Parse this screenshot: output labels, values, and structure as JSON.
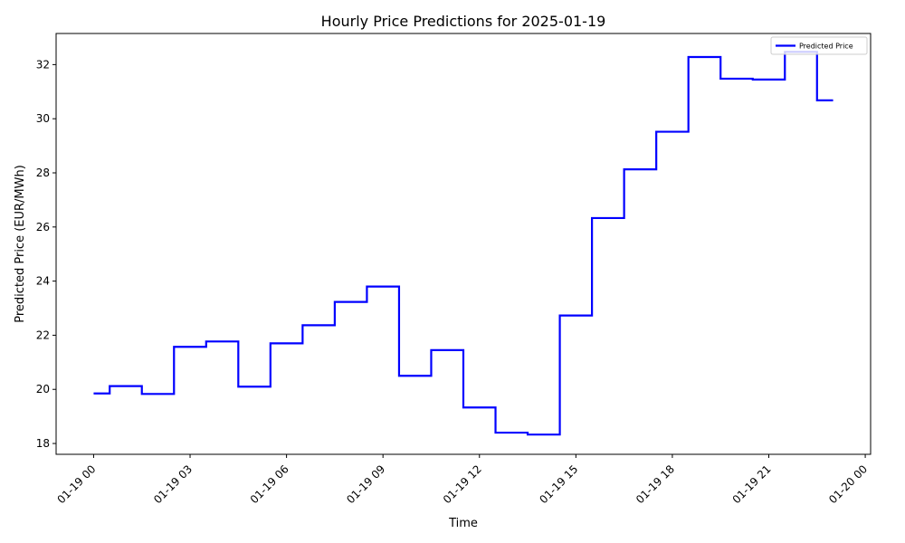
{
  "chart_data": {
    "type": "line",
    "title": "Hourly Price Predictions for 2025-01-19",
    "xlabel": "Time",
    "ylabel": "Predicted Price (EUR/MWh)",
    "x": [
      "2025-01-19 00:00",
      "2025-01-19 01:00",
      "2025-01-19 02:00",
      "2025-01-19 03:00",
      "2025-01-19 04:00",
      "2025-01-19 05:00",
      "2025-01-19 06:00",
      "2025-01-19 07:00",
      "2025-01-19 08:00",
      "2025-01-19 09:00",
      "2025-01-19 10:00",
      "2025-01-19 11:00",
      "2025-01-19 12:00",
      "2025-01-19 13:00",
      "2025-01-19 14:00",
      "2025-01-19 15:00",
      "2025-01-19 16:00",
      "2025-01-19 17:00",
      "2025-01-19 18:00",
      "2025-01-19 19:00",
      "2025-01-19 20:00",
      "2025-01-19 21:00",
      "2025-01-19 22:00",
      "2025-01-19 23:00"
    ],
    "series": [
      {
        "name": "Predicted Price",
        "color": "#0000ff",
        "step": "mid",
        "values": [
          19.85,
          20.12,
          19.83,
          21.57,
          21.77,
          20.1,
          21.7,
          22.37,
          23.23,
          23.8,
          20.5,
          21.45,
          19.33,
          18.4,
          18.33,
          22.73,
          26.33,
          28.13,
          29.52,
          32.28,
          31.48,
          31.45,
          32.47,
          30.68
        ]
      }
    ],
    "xlim": [
      "2025-01-18 22:50",
      "2025-01-20 00:10"
    ],
    "ylim": [
      17.6,
      33.15
    ],
    "xticks": [
      "01-19 00",
      "01-19 03",
      "01-19 06",
      "01-19 09",
      "01-19 12",
      "01-19 15",
      "01-19 18",
      "01-19 21",
      "01-20 00"
    ],
    "yticks": [
      18,
      20,
      22,
      24,
      26,
      28,
      30,
      32
    ],
    "legend_position": "top-right",
    "grid": false
  }
}
